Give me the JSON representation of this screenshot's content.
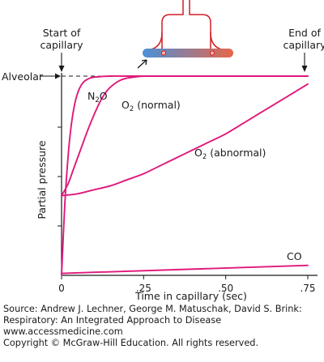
{
  "chart_data": {
    "type": "line",
    "xlabel": "Time in capillary (sec)",
    "ylabel": "Partial pressure",
    "xlim": [
      0,
      0.75
    ],
    "ylim": [
      0,
      1
    ],
    "x_tick_values": [
      0,
      0.25,
      0.5,
      0.75
    ],
    "x_tick_labels": [
      "0",
      ".25",
      ".50",
      ".75"
    ],
    "y_reference": {
      "label": "Alveolar",
      "value": 1.0,
      "style": "dashed"
    },
    "annotations": {
      "start": "Start of\ncapillary",
      "end": "End of\ncapillary"
    },
    "series": [
      {
        "name": "N2O",
        "label_main": "N",
        "label_sub": "2",
        "label_tail": "O",
        "x": [
          0,
          0.01,
          0.02,
          0.03,
          0.04,
          0.05,
          0.06,
          0.07,
          0.08,
          0.09,
          0.1,
          0.12,
          0.15,
          0.2,
          0.3,
          0.75
        ],
        "y": [
          0,
          0.36,
          0.6,
          0.76,
          0.86,
          0.92,
          0.955,
          0.975,
          0.985,
          0.992,
          0.995,
          0.998,
          1.0,
          1.0,
          1.0,
          1.0
        ]
      },
      {
        "name": "O2 (normal)",
        "label_main": "O",
        "label_sub": "2",
        "label_tail": " (normal)",
        "x": [
          0,
          0.02,
          0.04,
          0.06,
          0.08,
          0.1,
          0.12,
          0.14,
          0.16,
          0.18,
          0.2,
          0.22,
          0.25,
          0.3,
          0.4,
          0.75
        ],
        "y": [
          0.4,
          0.46,
          0.55,
          0.64,
          0.73,
          0.81,
          0.88,
          0.93,
          0.96,
          0.98,
          0.99,
          0.995,
          1.0,
          1.0,
          1.0,
          1.0
        ]
      },
      {
        "name": "O2 (abnormal)",
        "label_main": "O",
        "label_sub": "2",
        "label_tail": " (abnormal)",
        "x": [
          0,
          0.05,
          0.1,
          0.15,
          0.2,
          0.25,
          0.3,
          0.35,
          0.4,
          0.45,
          0.5,
          0.55,
          0.6,
          0.65,
          0.7,
          0.75
        ],
        "y": [
          0.4,
          0.41,
          0.43,
          0.45,
          0.48,
          0.51,
          0.55,
          0.59,
          0.63,
          0.67,
          0.71,
          0.76,
          0.81,
          0.86,
          0.91,
          0.96
        ]
      },
      {
        "name": "CO",
        "label_main": "CO",
        "label_sub": "",
        "label_tail": "",
        "x": [
          0,
          0.75
        ],
        "y": [
          0.01,
          0.05
        ]
      }
    ],
    "line_color": "#e0187a"
  },
  "illustration": {
    "capillary_color_start": "#4a90d9",
    "capillary_color_end": "#e8664a",
    "alveolus_color": "#d11f25"
  },
  "credits": [
    "Source: Andrew J. Lechner, George M. Matuschak, David S. Brink:",
    "Respiratory: An Integrated Approach to Disease",
    "www.accessmedicine.com",
    "Copyright © McGraw-Hill Education.  All rights reserved."
  ]
}
